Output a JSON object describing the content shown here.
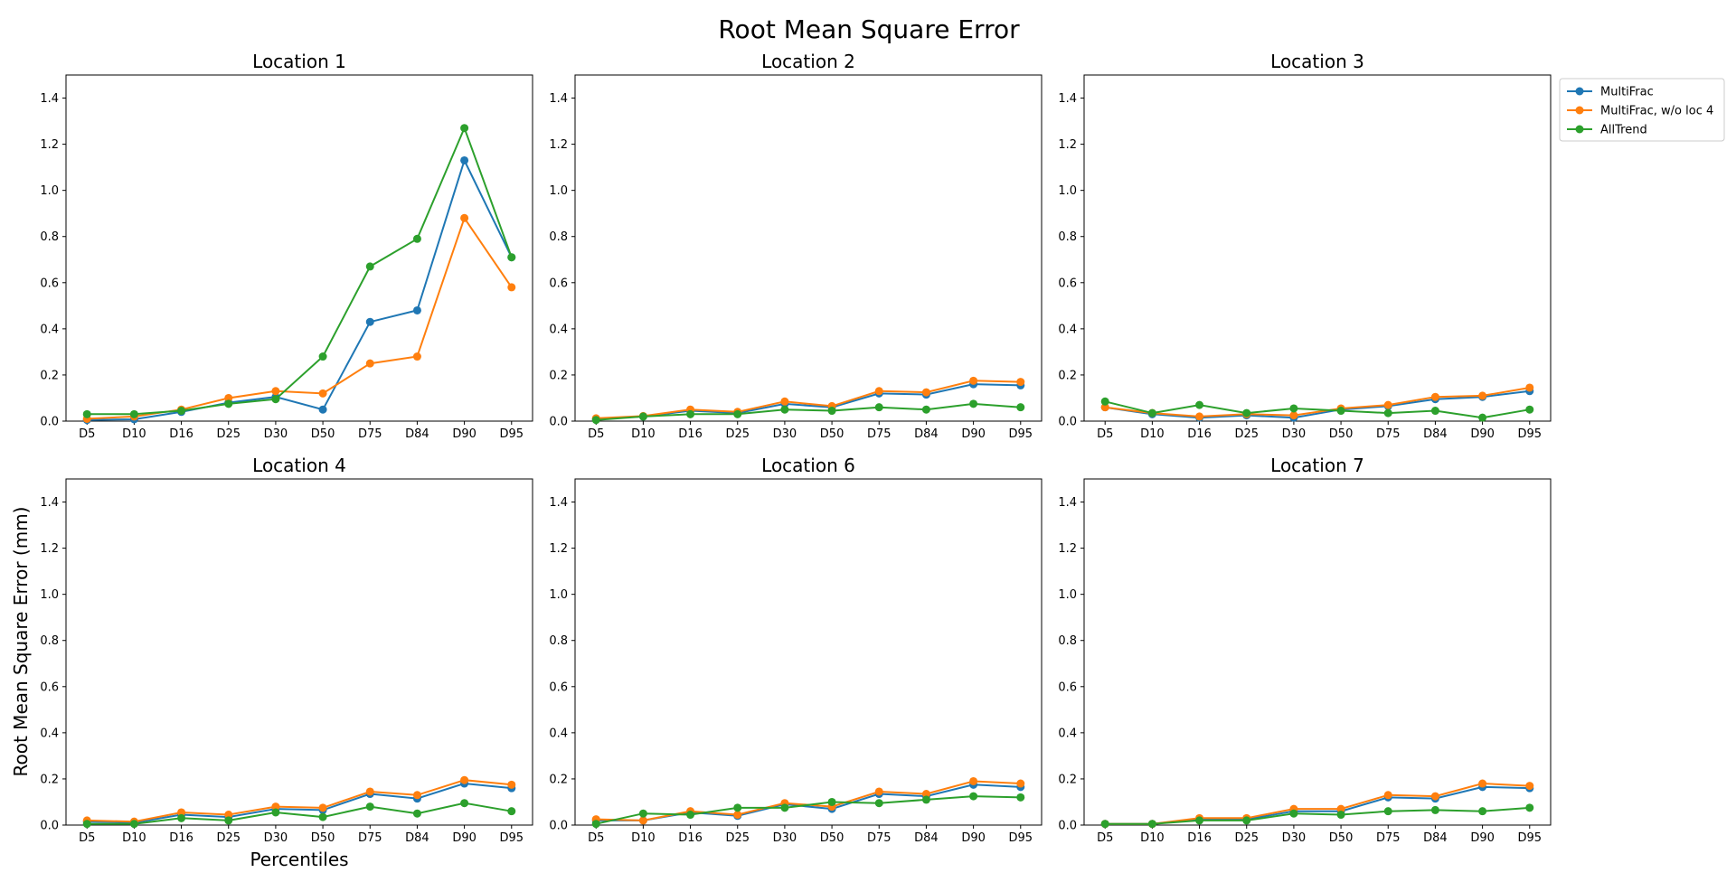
{
  "figure": {
    "title": "Root Mean Square Error",
    "ylabel": "Root Mean Square Error (mm)",
    "xlabel": "Percentiles"
  },
  "legend": {
    "placement": "outside-right-top",
    "entries": [
      "MultiFrac",
      "MultiFrac, w/o loc 4",
      "AllTrend"
    ]
  },
  "colors": {
    "MultiFrac": "#1f77b4",
    "MultiFrac, w/o loc 4": "#ff7f0e",
    "AllTrend": "#2ca02c"
  },
  "chart_data": [
    {
      "type": "line",
      "title": "Location 1",
      "categories": [
        "D5",
        "D10",
        "D16",
        "D25",
        "D30",
        "D50",
        "D75",
        "D84",
        "D90",
        "D95"
      ],
      "ylim": [
        0,
        1.5
      ],
      "yticks": [
        "0.0",
        "0.2",
        "0.4",
        "0.6",
        "0.8",
        "1.0",
        "1.2",
        "1.4"
      ],
      "grid": false,
      "series": [
        {
          "name": "MultiFrac",
          "values": [
            0.005,
            0.008,
            0.04,
            0.08,
            0.105,
            0.05,
            0.43,
            0.48,
            1.13,
            0.71
          ]
        },
        {
          "name": "MultiFrac, w/o loc 4",
          "values": [
            0.01,
            0.02,
            0.05,
            0.1,
            0.13,
            0.12,
            0.25,
            0.28,
            0.88,
            0.58
          ]
        },
        {
          "name": "AllTrend",
          "values": [
            0.03,
            0.03,
            0.045,
            0.075,
            0.095,
            0.28,
            0.67,
            0.79,
            1.27,
            0.71
          ]
        }
      ]
    },
    {
      "type": "line",
      "title": "Location 2",
      "categories": [
        "D5",
        "D10",
        "D16",
        "D25",
        "D30",
        "D50",
        "D75",
        "D84",
        "D90",
        "D95"
      ],
      "ylim": [
        0,
        1.5
      ],
      "yticks": [
        "0.0",
        "0.2",
        "0.4",
        "0.6",
        "0.8",
        "1.0",
        "1.2",
        "1.4"
      ],
      "grid": false,
      "series": [
        {
          "name": "MultiFrac",
          "values": [
            0.01,
            0.02,
            0.045,
            0.035,
            0.075,
            0.06,
            0.12,
            0.115,
            0.16,
            0.155
          ]
        },
        {
          "name": "MultiFrac, w/o loc 4",
          "values": [
            0.012,
            0.022,
            0.05,
            0.04,
            0.085,
            0.065,
            0.13,
            0.125,
            0.175,
            0.17
          ]
        },
        {
          "name": "AllTrend",
          "values": [
            0.005,
            0.02,
            0.03,
            0.03,
            0.05,
            0.045,
            0.06,
            0.05,
            0.075,
            0.06
          ]
        }
      ]
    },
    {
      "type": "line",
      "title": "Location 3",
      "categories": [
        "D5",
        "D10",
        "D16",
        "D25",
        "D30",
        "D50",
        "D75",
        "D84",
        "D90",
        "D95"
      ],
      "ylim": [
        0,
        1.5
      ],
      "yticks": [
        "0.0",
        "0.2",
        "0.4",
        "0.6",
        "0.8",
        "1.0",
        "1.2",
        "1.4"
      ],
      "grid": false,
      "series": [
        {
          "name": "MultiFrac",
          "values": [
            0.06,
            0.03,
            0.015,
            0.025,
            0.015,
            0.05,
            0.065,
            0.095,
            0.105,
            0.13
          ]
        },
        {
          "name": "MultiFrac, w/o loc 4",
          "values": [
            0.06,
            0.035,
            0.02,
            0.03,
            0.025,
            0.055,
            0.07,
            0.105,
            0.11,
            0.145
          ]
        },
        {
          "name": "AllTrend",
          "values": [
            0.085,
            0.035,
            0.07,
            0.035,
            0.055,
            0.045,
            0.035,
            0.045,
            0.015,
            0.05
          ]
        }
      ]
    },
    {
      "type": "line",
      "title": "Location 4",
      "categories": [
        "D5",
        "D10",
        "D16",
        "D25",
        "D30",
        "D50",
        "D75",
        "D84",
        "D90",
        "D95"
      ],
      "ylim": [
        0,
        1.5
      ],
      "yticks": [
        "0.0",
        "0.2",
        "0.4",
        "0.6",
        "0.8",
        "1.0",
        "1.2",
        "1.4"
      ],
      "grid": false,
      "series": [
        {
          "name": "MultiFrac",
          "values": [
            0.015,
            0.01,
            0.045,
            0.035,
            0.07,
            0.065,
            0.135,
            0.115,
            0.18,
            0.16
          ]
        },
        {
          "name": "MultiFrac, w/o loc 4",
          "values": [
            0.02,
            0.015,
            0.055,
            0.045,
            0.08,
            0.075,
            0.145,
            0.13,
            0.195,
            0.175
          ]
        },
        {
          "name": "AllTrend",
          "values": [
            0.005,
            0.005,
            0.03,
            0.02,
            0.055,
            0.035,
            0.08,
            0.05,
            0.095,
            0.06
          ]
        }
      ]
    },
    {
      "type": "line",
      "title": "Location 6",
      "categories": [
        "D5",
        "D10",
        "D16",
        "D25",
        "D30",
        "D50",
        "D75",
        "D84",
        "D90",
        "D95"
      ],
      "ylim": [
        0,
        1.5
      ],
      "yticks": [
        "0.0",
        "0.2",
        "0.4",
        "0.6",
        "0.8",
        "1.0",
        "1.2",
        "1.4"
      ],
      "grid": false,
      "series": [
        {
          "name": "MultiFrac",
          "values": [
            0.02,
            0.02,
            0.055,
            0.04,
            0.09,
            0.07,
            0.135,
            0.125,
            0.175,
            0.165
          ]
        },
        {
          "name": "MultiFrac, w/o loc 4",
          "values": [
            0.025,
            0.02,
            0.06,
            0.045,
            0.095,
            0.08,
            0.145,
            0.135,
            0.19,
            0.18
          ]
        },
        {
          "name": "AllTrend",
          "values": [
            0.005,
            0.05,
            0.045,
            0.075,
            0.075,
            0.1,
            0.095,
            0.11,
            0.125,
            0.12
          ]
        }
      ]
    },
    {
      "type": "line",
      "title": "Location 7",
      "categories": [
        "D5",
        "D10",
        "D16",
        "D25",
        "D30",
        "D50",
        "D75",
        "D84",
        "D90",
        "D95"
      ],
      "ylim": [
        0,
        1.5
      ],
      "yticks": [
        "0.0",
        "0.2",
        "0.4",
        "0.6",
        "0.8",
        "1.0",
        "1.2",
        "1.4"
      ],
      "grid": false,
      "series": [
        {
          "name": "MultiFrac",
          "values": [
            0.005,
            0.005,
            0.025,
            0.025,
            0.06,
            0.06,
            0.12,
            0.115,
            0.165,
            0.16
          ]
        },
        {
          "name": "MultiFrac, w/o loc 4",
          "values": [
            0.005,
            0.005,
            0.03,
            0.03,
            0.07,
            0.07,
            0.13,
            0.125,
            0.18,
            0.17
          ]
        },
        {
          "name": "AllTrend",
          "values": [
            0.005,
            0.005,
            0.02,
            0.02,
            0.05,
            0.045,
            0.06,
            0.065,
            0.06,
            0.075
          ]
        }
      ]
    }
  ]
}
